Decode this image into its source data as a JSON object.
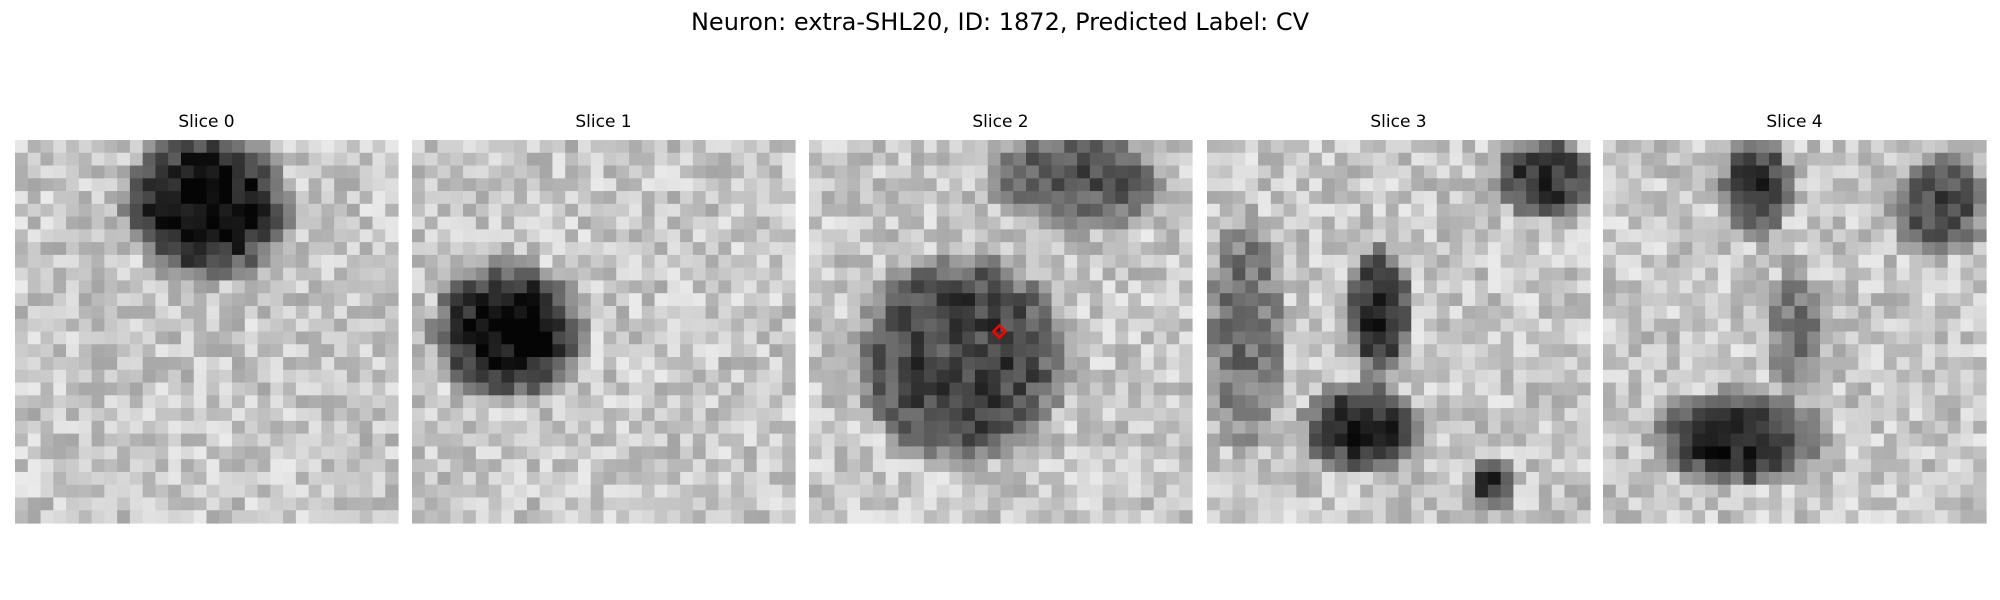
{
  "figure": {
    "title": "Neuron: extra-SHL20, ID: 1872, Predicted Label: CV",
    "panels": [
      {
        "title": "Slice 0"
      },
      {
        "title": "Slice 1"
      },
      {
        "title": "Slice 2"
      },
      {
        "title": "Slice 3"
      },
      {
        "title": "Slice 4"
      }
    ]
  }
}
